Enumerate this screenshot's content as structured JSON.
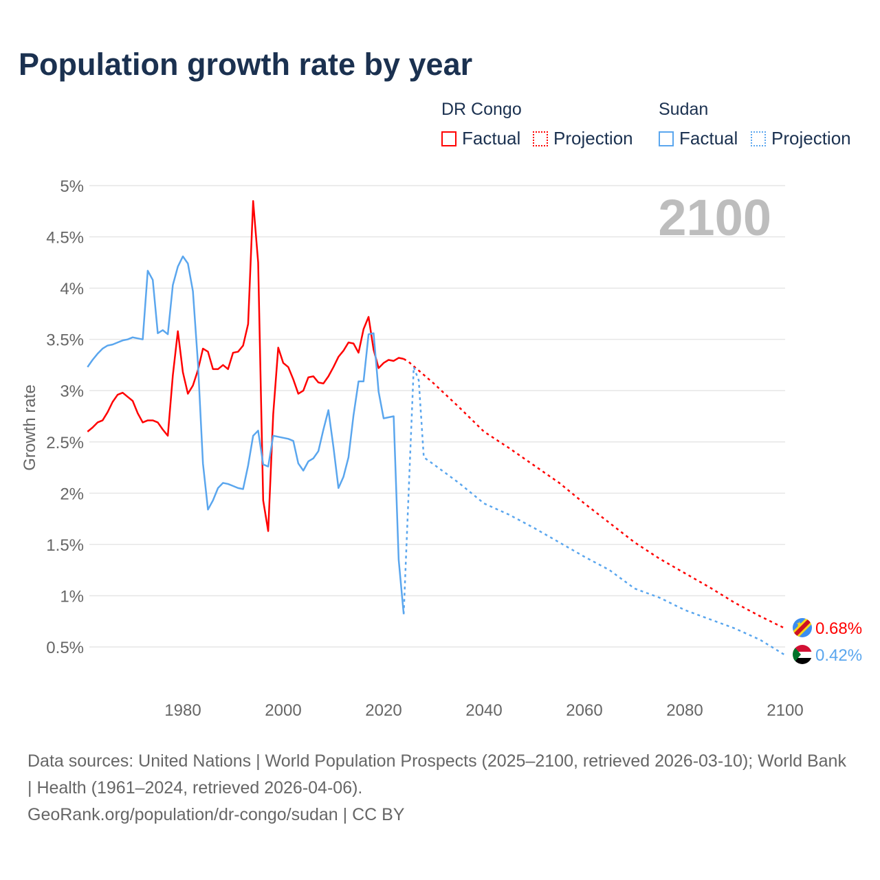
{
  "title": "Population growth rate by year",
  "legend": {
    "groups": [
      {
        "name": "DR Congo",
        "color": "#ff0000",
        "factual": "Factual",
        "projection": "Projection"
      },
      {
        "name": "Sudan",
        "color": "#5aa6ee",
        "factual": "Factual",
        "projection": "Projection"
      }
    ]
  },
  "footer": {
    "sources": "Data sources: United Nations | World Population Prospects (2025–2100, retrieved 2026-03-10); World Bank | Health (1961–2024, retrieved 2026-04-06).",
    "credit": "GeoRank.org/population/dr-congo/sudan | CC BY"
  },
  "chart_data": {
    "type": "line",
    "title": "Population growth rate by year",
    "ylabel": "Growth rate",
    "xlabel": "",
    "watermark_year": "2100",
    "xlim": [
      1960,
      2100
    ],
    "ylim": [
      0,
      5
    ],
    "xticks": [
      1980,
      2000,
      2020,
      2040,
      2060,
      2080,
      2100
    ],
    "yticks": [
      {
        "v": 0.5,
        "l": "0.5%"
      },
      {
        "v": 1,
        "l": "1%"
      },
      {
        "v": 1.5,
        "l": "1.5%"
      },
      {
        "v": 2,
        "l": "2%"
      },
      {
        "v": 2.5,
        "l": "2.5%"
      },
      {
        "v": 3,
        "l": "3%"
      },
      {
        "v": 3.5,
        "l": "3.5%"
      },
      {
        "v": 4,
        "l": "4%"
      },
      {
        "v": 4.5,
        "l": "4.5%"
      },
      {
        "v": 5,
        "l": "5%"
      }
    ],
    "series": [
      {
        "name": "DR Congo",
        "color": "#ff0000",
        "end_label": "0.68%",
        "factual": {
          "start": 1961,
          "values": [
            2.6,
            2.64,
            2.69,
            2.71,
            2.79,
            2.89,
            2.96,
            2.98,
            2.94,
            2.9,
            2.78,
            2.69,
            2.71,
            2.71,
            2.69,
            2.62,
            2.56,
            3.15,
            3.58,
            3.18,
            2.97,
            3.05,
            3.2,
            3.41,
            3.38,
            3.21,
            3.21,
            3.25,
            3.21,
            3.37,
            3.38,
            3.44,
            3.65,
            4.85,
            4.25,
            1.93,
            1.63,
            2.77,
            3.42,
            3.27,
            3.23,
            3.11,
            2.97,
            3.0,
            3.13,
            3.14,
            3.08,
            3.07,
            3.14,
            3.23,
            3.33,
            3.39,
            3.47,
            3.46,
            3.37,
            3.6,
            3.72,
            3.4,
            3.22,
            3.27,
            3.3,
            3.29,
            3.32,
            3.31
          ]
        },
        "projection": {
          "x": [
            2024,
            2025,
            2030,
            2035,
            2040,
            2045,
            2050,
            2055,
            2060,
            2065,
            2070,
            2075,
            2080,
            2085,
            2090,
            2095,
            2100
          ],
          "values": [
            3.31,
            3.28,
            3.07,
            2.84,
            2.6,
            2.44,
            2.27,
            2.1,
            1.9,
            1.71,
            1.52,
            1.36,
            1.22,
            1.08,
            0.93,
            0.8,
            0.68
          ]
        }
      },
      {
        "name": "Sudan",
        "color": "#5aa6ee",
        "end_label": "0.42%",
        "factual": {
          "start": 1961,
          "values": [
            3.23,
            3.3,
            3.36,
            3.41,
            3.44,
            3.45,
            3.47,
            3.49,
            3.5,
            3.52,
            3.51,
            3.5,
            4.17,
            4.08,
            3.56,
            3.59,
            3.55,
            4.03,
            4.21,
            4.31,
            4.24,
            3.97,
            3.27,
            2.29,
            1.84,
            1.93,
            2.05,
            2.1,
            2.09,
            2.07,
            2.05,
            2.04,
            2.27,
            2.56,
            2.61,
            2.28,
            2.26,
            2.56,
            2.55,
            2.54,
            2.53,
            2.51,
            2.29,
            2.22,
            2.31,
            2.34,
            2.41,
            2.62,
            2.81,
            2.45,
            2.05,
            2.16,
            2.35,
            2.76,
            3.09,
            3.09,
            3.55,
            3.56,
            2.99,
            2.73,
            2.74,
            2.75,
            1.35,
            0.82
          ]
        },
        "projection": {
          "x": [
            2024,
            2026,
            2027,
            2028,
            2030,
            2035,
            2040,
            2045,
            2050,
            2055,
            2060,
            2065,
            2070,
            2075,
            2080,
            2085,
            2090,
            2095,
            2100
          ],
          "values": [
            0.82,
            3.23,
            3.1,
            2.35,
            2.28,
            2.1,
            1.9,
            1.79,
            1.66,
            1.52,
            1.38,
            1.25,
            1.07,
            0.98,
            0.86,
            0.77,
            0.68,
            0.57,
            0.42
          ]
        }
      }
    ]
  }
}
